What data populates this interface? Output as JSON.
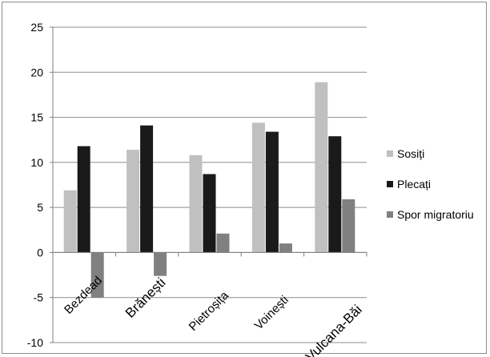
{
  "chart_data": {
    "type": "bar",
    "categories": [
      "Bezdead",
      "Brănești",
      "Pietroșița",
      "Voinești",
      "Vulcana-Băi"
    ],
    "series": [
      {
        "name": "Sosiți",
        "color": "#c0c0c0",
        "values": [
          6.9,
          11.4,
          10.8,
          14.4,
          18.9
        ]
      },
      {
        "name": "Plecați",
        "color": "#1a1a1a",
        "values": [
          11.8,
          14.1,
          8.7,
          13.4,
          12.9
        ]
      },
      {
        "name": "Spor migratoriu",
        "color": "#808080",
        "values": [
          -5.0,
          -2.6,
          2.1,
          1.0,
          5.9
        ]
      }
    ],
    "ylim": [
      -10,
      25
    ],
    "yticks": [
      "25",
      "20",
      "15",
      "10",
      "5",
      "0",
      "-5",
      "-10"
    ],
    "grid": true,
    "legend_position": "right"
  }
}
